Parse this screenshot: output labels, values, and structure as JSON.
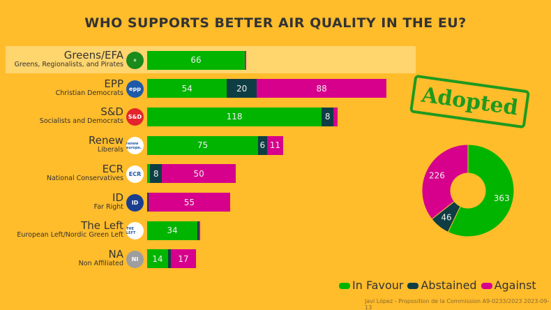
{
  "title": "WHO SUPPORTS BETTER AIR QUALITY IN THE EU?",
  "stamp": "Adopted",
  "colors": {
    "favour": "#00B400",
    "abstained": "#0E3E44",
    "against": "#D6008C",
    "background": "#FFBC2B",
    "highlight": "#FFD56E"
  },
  "legend": [
    "In Favour",
    "Abstained",
    "Against"
  ],
  "footer": "Javi López - Proposition de la Commission A9-0233/2023 2023-09-13",
  "chart_data": {
    "type": "bar",
    "orientation": "horizontal-stacked",
    "categories": [
      {
        "name": "Greens/EFA",
        "sub": "Greens, Regionalists, and Pirates",
        "logo": "greens-logo",
        "logo_color": "#1a8a1a",
        "highlight": true
      },
      {
        "name": "EPP",
        "sub": "Christian Democrats",
        "logo": "epp",
        "logo_color": "#1f5aa8"
      },
      {
        "name": "S&D",
        "sub": "Socialists and Democrats",
        "logo": "S&D",
        "logo_color": "#e4232c"
      },
      {
        "name": "Renew",
        "sub": "Liberals",
        "logo": "renew europe.",
        "logo_color": "#ffffff"
      },
      {
        "name": "ECR",
        "sub": "National Conservatives",
        "logo": "ECR",
        "logo_color": "#ffffff"
      },
      {
        "name": "ID",
        "sub": "Far Right",
        "logo": "ID",
        "logo_color": "#1b3f8f"
      },
      {
        "name": "The Left",
        "sub": "European Left/Nordic Green Left",
        "logo": "THE LEFT",
        "logo_color": "#ffffff"
      },
      {
        "name": "NA",
        "sub": "Non Affiliated",
        "logo": "NI",
        "logo_color": "#9e9e9e"
      }
    ],
    "series": [
      {
        "name": "In Favour",
        "values": [
          66,
          54,
          118,
          75,
          2,
          0,
          34,
          14
        ]
      },
      {
        "name": "Abstained",
        "values": [
          0,
          20,
          8,
          6,
          8,
          1,
          1,
          2
        ]
      },
      {
        "name": "Against",
        "values": [
          1,
          88,
          3,
          11,
          50,
          55,
          1,
          17
        ]
      }
    ],
    "donut": {
      "type": "pie",
      "labels": [
        "In Favour",
        "Abstained",
        "Against"
      ],
      "values": [
        363,
        46,
        226
      ]
    }
  }
}
